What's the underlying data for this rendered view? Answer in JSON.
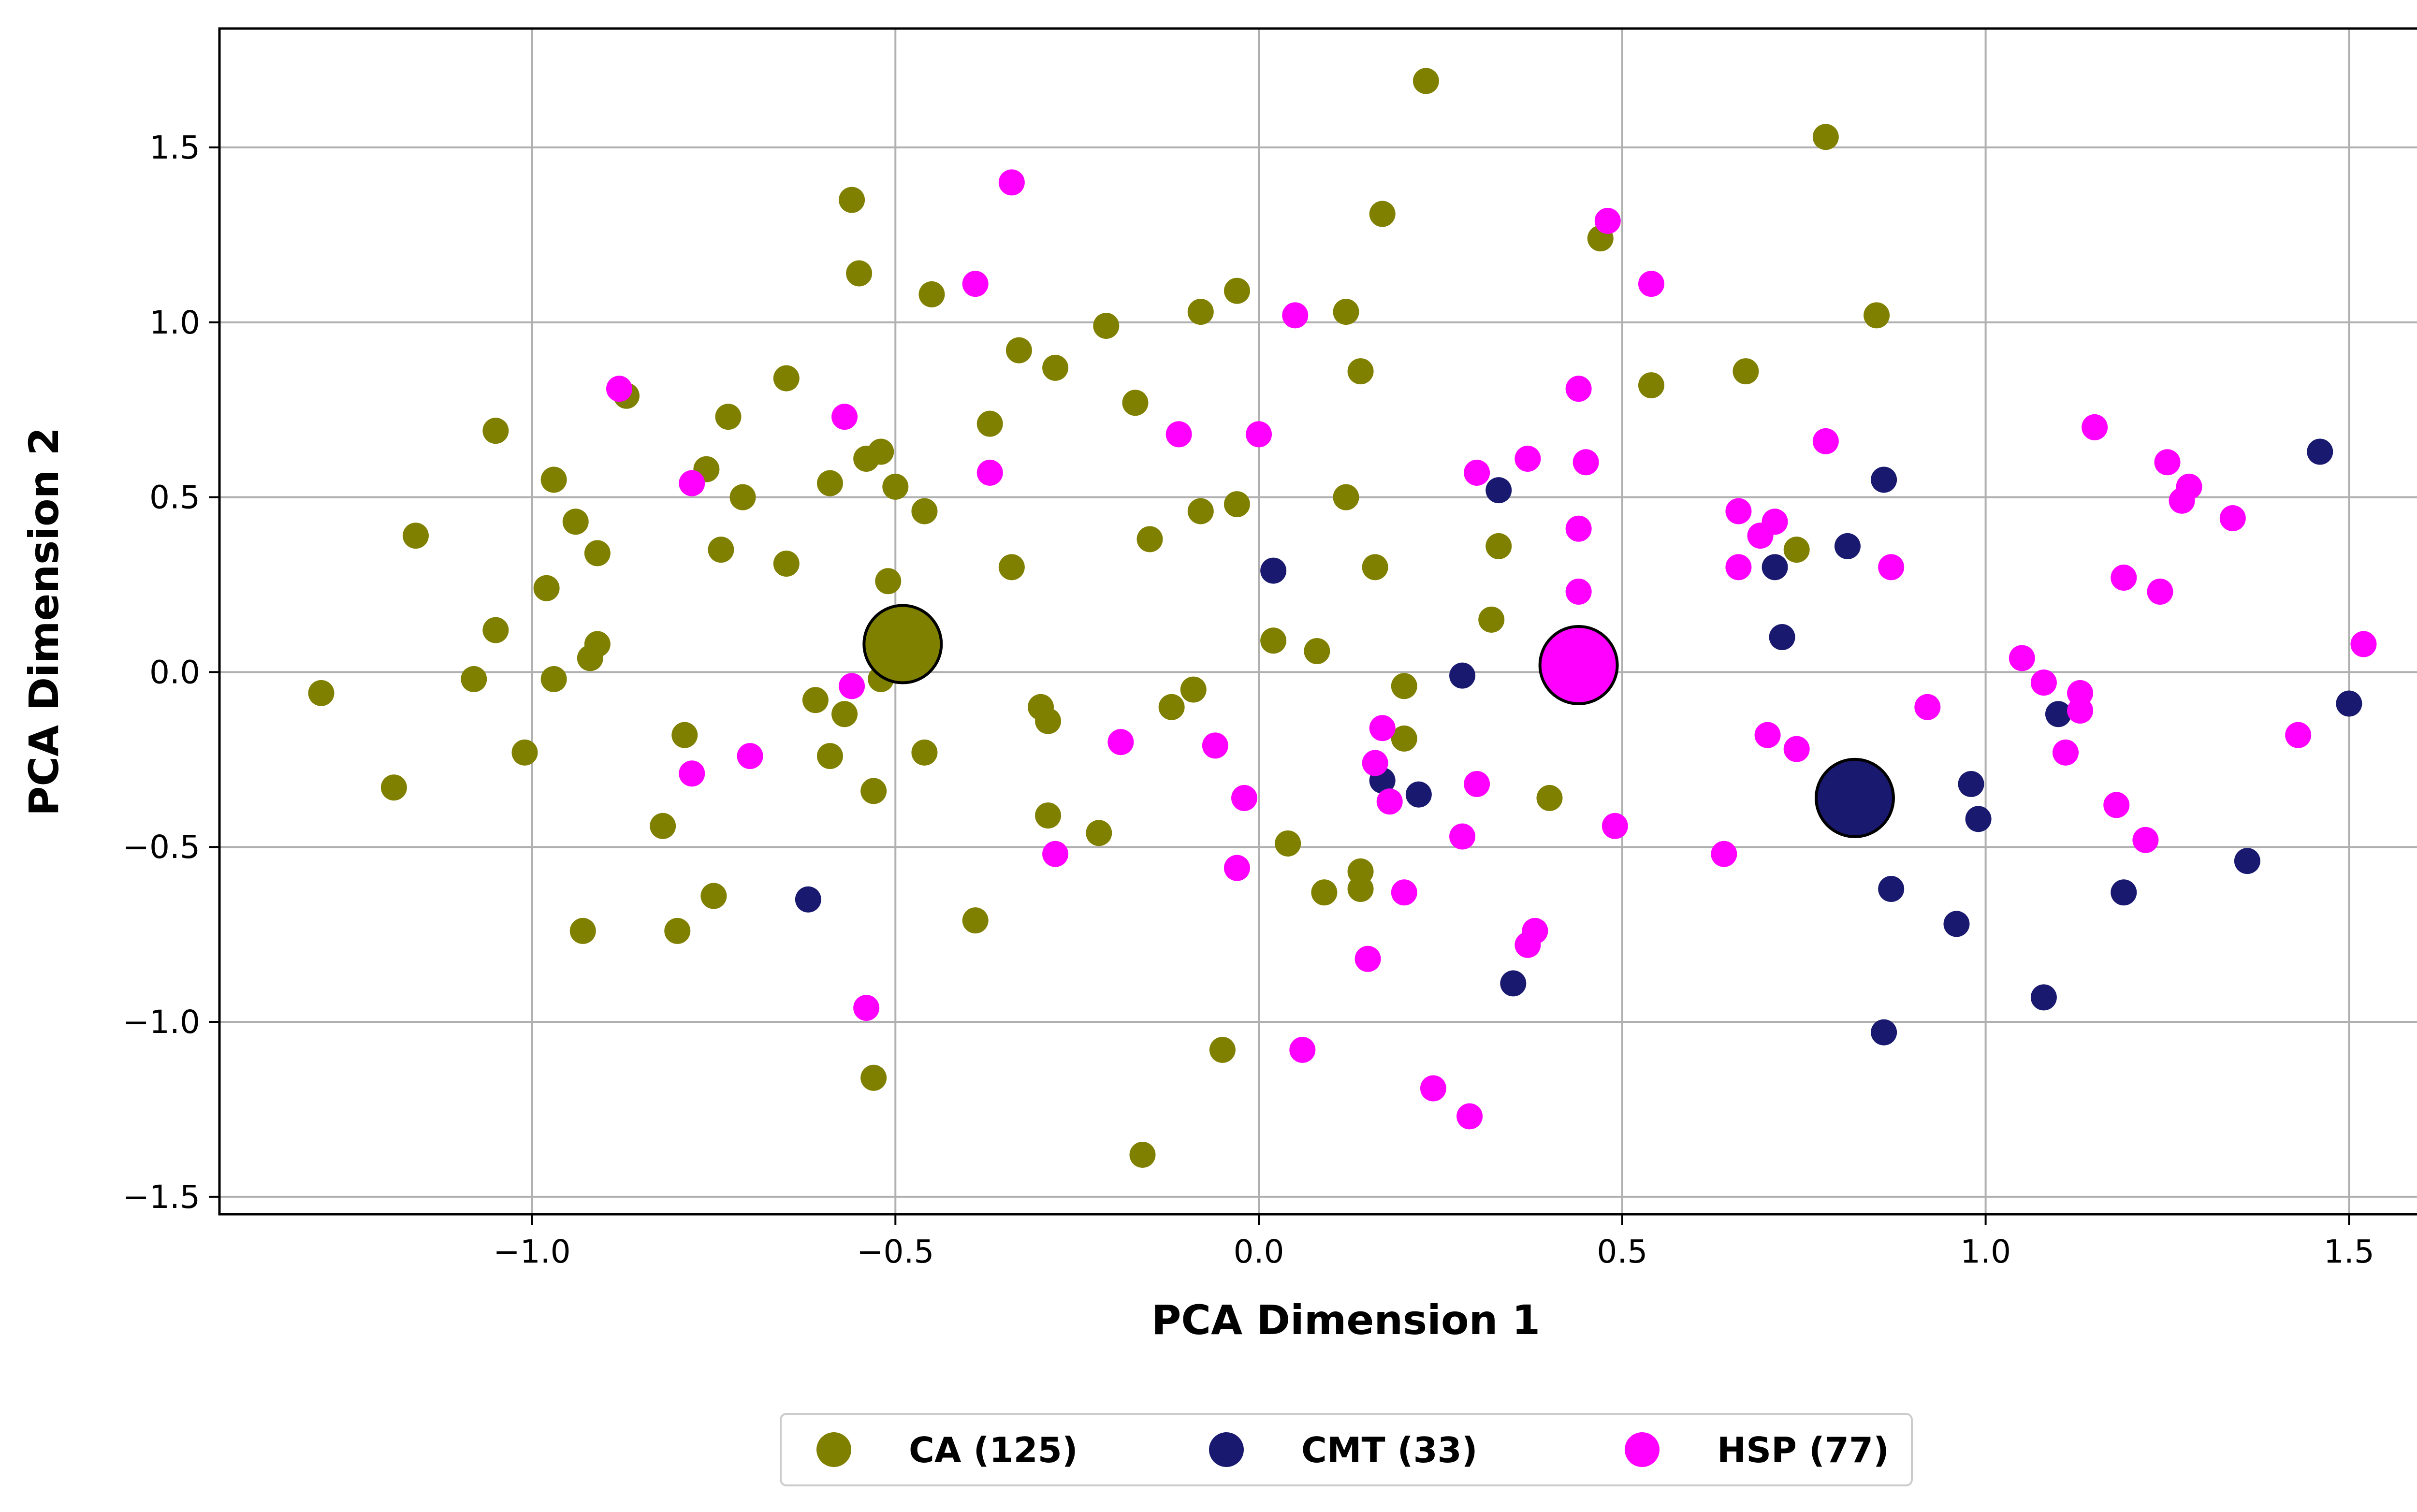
{
  "chart_data": {
    "type": "scatter",
    "xlabel": "PCA Dimension 1",
    "ylabel": "PCA Dimension 2",
    "xlim": [
      -1.43,
      1.67
    ],
    "ylim": [
      -1.55,
      1.84
    ],
    "xticks": [
      -1.0,
      -0.5,
      0.0,
      0.5,
      1.0,
      1.5
    ],
    "yticks": [
      -1.5,
      -1.0,
      -0.5,
      0.0,
      0.5,
      1.0,
      1.5
    ],
    "xtick_labels": [
      "−1.0",
      "−0.5",
      "0.0",
      "0.5",
      "1.0",
      "1.5"
    ],
    "ytick_labels": [
      "−1.5",
      "−1.0",
      "−0.5",
      "0.0",
      "0.5",
      "1.0",
      "1.5"
    ],
    "grid": true,
    "legend_position": "bottom-center, below plot",
    "series": [
      {
        "name": "CA (125)",
        "color": "#808000",
        "centroid": [
          -0.49,
          0.08
        ],
        "points": [
          [
            -1.29,
            -0.06
          ],
          [
            -1.19,
            -0.33
          ],
          [
            -1.16,
            0.39
          ],
          [
            -1.08,
            -0.02
          ],
          [
            -1.05,
            0.69
          ],
          [
            -1.05,
            0.12
          ],
          [
            -1.01,
            -0.23
          ],
          [
            -0.98,
            0.24
          ],
          [
            -0.97,
            0.55
          ],
          [
            -0.97,
            -0.02
          ],
          [
            -0.94,
            0.43
          ],
          [
            -0.93,
            -0.74
          ],
          [
            -0.92,
            0.04
          ],
          [
            -0.91,
            0.08
          ],
          [
            -0.91,
            0.34
          ],
          [
            -0.87,
            0.79
          ],
          [
            -0.82,
            -0.44
          ],
          [
            -0.8,
            -0.74
          ],
          [
            -0.79,
            -0.18
          ],
          [
            -0.76,
            0.58
          ],
          [
            -0.75,
            -0.64
          ],
          [
            -0.74,
            0.35
          ],
          [
            -0.73,
            0.73
          ],
          [
            -0.71,
            0.5
          ],
          [
            -0.65,
            0.84
          ],
          [
            -0.65,
            0.31
          ],
          [
            -0.61,
            -0.08
          ],
          [
            -0.59,
            -0.24
          ],
          [
            -0.59,
            0.54
          ],
          [
            -0.57,
            -0.12
          ],
          [
            -0.56,
            1.35
          ],
          [
            -0.55,
            1.14
          ],
          [
            -0.54,
            0.61
          ],
          [
            -0.53,
            -0.34
          ],
          [
            -0.53,
            -1.16
          ],
          [
            -0.52,
            -0.02
          ],
          [
            -0.52,
            0.63
          ],
          [
            -0.51,
            0.26
          ],
          [
            -0.5,
            0.53
          ],
          [
            -0.46,
            0.46
          ],
          [
            -0.46,
            -0.23
          ],
          [
            -0.45,
            1.08
          ],
          [
            -0.39,
            -0.71
          ],
          [
            -0.37,
            0.71
          ],
          [
            -0.34,
            0.3
          ],
          [
            -0.33,
            0.92
          ],
          [
            -0.3,
            -0.1
          ],
          [
            -0.29,
            -0.14
          ],
          [
            -0.29,
            -0.41
          ],
          [
            -0.28,
            0.87
          ],
          [
            -0.22,
            -0.46
          ],
          [
            -0.21,
            0.99
          ],
          [
            -0.17,
            0.77
          ],
          [
            -0.16,
            -1.38
          ],
          [
            -0.15,
            0.38
          ],
          [
            -0.12,
            -0.1
          ],
          [
            -0.09,
            -0.05
          ],
          [
            -0.08,
            1.03
          ],
          [
            -0.08,
            0.46
          ],
          [
            -0.05,
            -1.08
          ],
          [
            -0.03,
            0.48
          ],
          [
            -0.03,
            1.09
          ],
          [
            0.02,
            0.09
          ],
          [
            0.04,
            -0.49
          ],
          [
            0.08,
            0.06
          ],
          [
            0.09,
            -0.63
          ],
          [
            0.12,
            1.03
          ],
          [
            0.12,
            0.5
          ],
          [
            0.14,
            -0.62
          ],
          [
            0.14,
            0.86
          ],
          [
            0.14,
            -0.57
          ],
          [
            0.16,
            0.3
          ],
          [
            0.17,
            1.31
          ],
          [
            0.2,
            -0.19
          ],
          [
            0.2,
            -0.04
          ],
          [
            0.23,
            1.69
          ],
          [
            0.32,
            0.15
          ],
          [
            0.33,
            0.36
          ],
          [
            0.4,
            -0.36
          ],
          [
            0.47,
            1.24
          ],
          [
            0.54,
            0.82
          ],
          [
            0.67,
            0.86
          ],
          [
            0.74,
            0.35
          ],
          [
            0.78,
            1.53
          ],
          [
            0.85,
            1.02
          ]
        ]
      },
      {
        "name": "CMT (33)",
        "color": "#191970",
        "centroid": [
          0.82,
          -0.36
        ],
        "points": [
          [
            -0.62,
            -0.65
          ],
          [
            0.02,
            0.29
          ],
          [
            0.17,
            -0.31
          ],
          [
            0.22,
            -0.35
          ],
          [
            0.28,
            -0.01
          ],
          [
            0.33,
            0.52
          ],
          [
            0.35,
            -0.89
          ],
          [
            0.71,
            0.3
          ],
          [
            0.72,
            0.1
          ],
          [
            0.81,
            0.36
          ],
          [
            0.86,
            0.55
          ],
          [
            0.86,
            -1.03
          ],
          [
            0.87,
            -0.62
          ],
          [
            0.96,
            -0.72
          ],
          [
            0.98,
            -0.32
          ],
          [
            0.99,
            -0.42
          ],
          [
            1.08,
            -0.93
          ],
          [
            1.1,
            -0.12
          ],
          [
            1.19,
            -0.63
          ],
          [
            1.36,
            -0.54
          ],
          [
            1.46,
            0.63
          ],
          [
            1.5,
            -0.09
          ]
        ]
      },
      {
        "name": "HSP (77)",
        "color": "#ff00ff",
        "centroid": [
          0.44,
          0.02
        ],
        "points": [
          [
            -0.88,
            0.81
          ],
          [
            -0.78,
            0.54
          ],
          [
            -0.78,
            -0.29
          ],
          [
            -0.7,
            -0.24
          ],
          [
            -0.57,
            0.73
          ],
          [
            -0.56,
            -0.04
          ],
          [
            -0.54,
            -0.96
          ],
          [
            -0.39,
            1.11
          ],
          [
            -0.37,
            0.57
          ],
          [
            -0.34,
            1.4
          ],
          [
            -0.28,
            -0.52
          ],
          [
            -0.19,
            -0.2
          ],
          [
            -0.11,
            0.68
          ],
          [
            -0.06,
            -0.21
          ],
          [
            -0.03,
            -0.56
          ],
          [
            -0.02,
            -0.36
          ],
          [
            0.0,
            0.68
          ],
          [
            0.05,
            1.02
          ],
          [
            0.06,
            -1.08
          ],
          [
            0.15,
            -0.82
          ],
          [
            0.16,
            -0.26
          ],
          [
            0.17,
            -0.16
          ],
          [
            0.18,
            -0.37
          ],
          [
            0.2,
            -0.63
          ],
          [
            0.24,
            -1.19
          ],
          [
            0.28,
            -0.47
          ],
          [
            0.29,
            -1.27
          ],
          [
            0.3,
            0.57
          ],
          [
            0.3,
            -0.32
          ],
          [
            0.37,
            -0.78
          ],
          [
            0.37,
            0.61
          ],
          [
            0.38,
            -0.74
          ],
          [
            0.44,
            0.81
          ],
          [
            0.44,
            0.23
          ],
          [
            0.44,
            0.41
          ],
          [
            0.45,
            0.6
          ],
          [
            0.48,
            1.29
          ],
          [
            0.49,
            -0.44
          ],
          [
            0.54,
            1.11
          ],
          [
            0.64,
            -0.52
          ],
          [
            0.66,
            0.3
          ],
          [
            0.66,
            0.46
          ],
          [
            0.69,
            0.39
          ],
          [
            0.7,
            -0.18
          ],
          [
            0.71,
            0.43
          ],
          [
            0.74,
            -0.22
          ],
          [
            0.78,
            0.66
          ],
          [
            0.87,
            0.3
          ],
          [
            0.92,
            -0.1
          ],
          [
            1.05,
            0.04
          ],
          [
            1.08,
            -0.03
          ],
          [
            1.11,
            -0.23
          ],
          [
            1.13,
            -0.11
          ],
          [
            1.13,
            -0.06
          ],
          [
            1.15,
            0.7
          ],
          [
            1.18,
            -0.38
          ],
          [
            1.19,
            0.27
          ],
          [
            1.22,
            -0.48
          ],
          [
            1.24,
            0.23
          ],
          [
            1.25,
            0.6
          ],
          [
            1.27,
            0.49
          ],
          [
            1.28,
            0.53
          ],
          [
            1.34,
            0.44
          ],
          [
            1.43,
            -0.18
          ],
          [
            1.52,
            0.08
          ]
        ]
      }
    ]
  }
}
